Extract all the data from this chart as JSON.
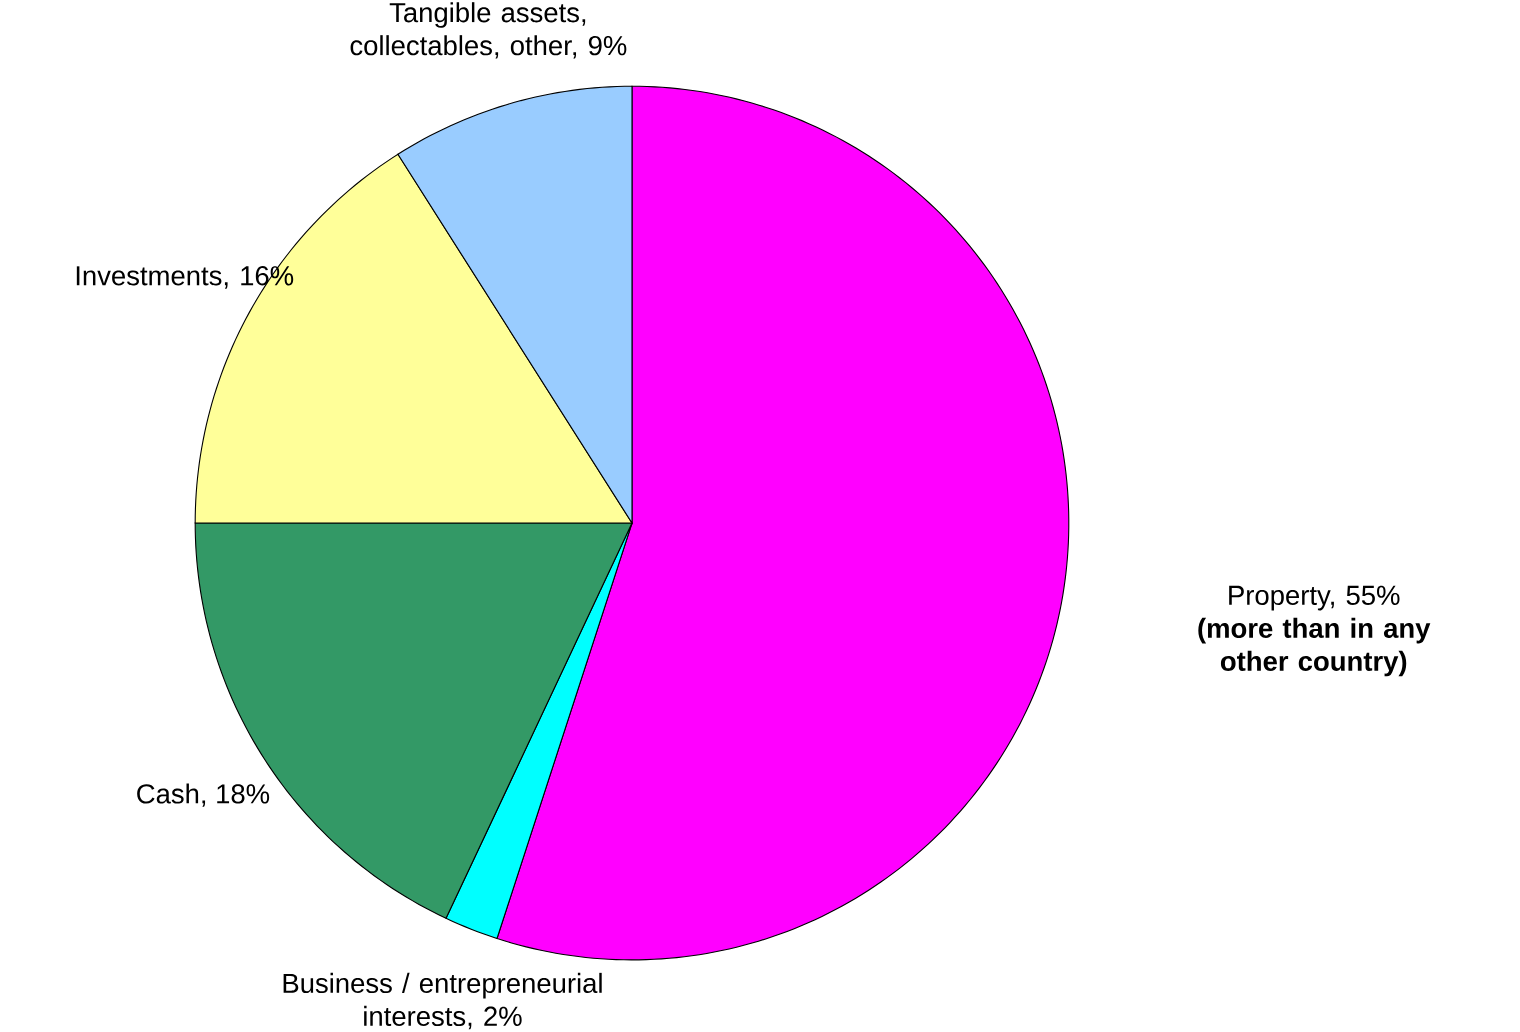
{
  "chart_data": {
    "type": "pie",
    "categories": [
      "Property, 55%",
      "Business / entrepreneurial interests, 2%",
      "Cash, 18%",
      "Investments, 16%",
      "Tangible assets, collectables, other, 9%"
    ],
    "values": [
      55,
      2,
      18,
      16,
      9
    ],
    "colors": [
      "#ff00ff",
      "#00ffff",
      "#339966",
      "#ffff99",
      "#99ccff"
    ],
    "annotations": [
      "(more than in any other country)"
    ]
  }
}
